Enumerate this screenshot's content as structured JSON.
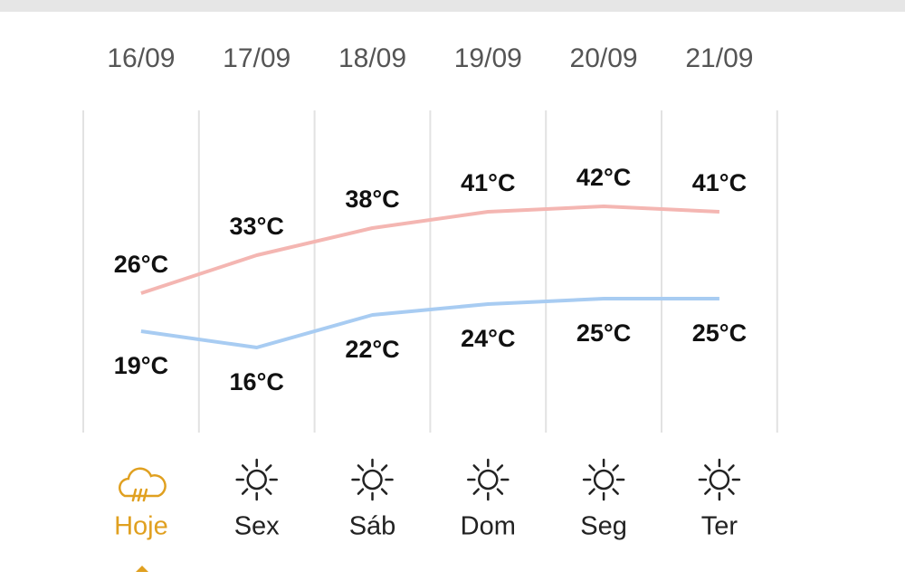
{
  "chart_data": {
    "type": "line",
    "categories": [
      "16/09",
      "17/09",
      "18/09",
      "19/09",
      "20/09",
      "21/09"
    ],
    "day_labels": [
      "Hoje",
      "Sex",
      "Sáb",
      "Dom",
      "Seg",
      "Ter"
    ],
    "series": [
      {
        "color": "#f4b6b2",
        "values": [
          26,
          33,
          38,
          41,
          42,
          41
        ],
        "value_labels": [
          "26°C",
          "33°C",
          "38°C",
          "41°C",
          "42°C",
          "41°C"
        ]
      },
      {
        "color": "#a8ccf2",
        "values": [
          19,
          16,
          22,
          24,
          25,
          25
        ],
        "value_labels": [
          "19°C",
          "16°C",
          "22°C",
          "24°C",
          "25°C",
          "25°C"
        ]
      }
    ]
  }
}
